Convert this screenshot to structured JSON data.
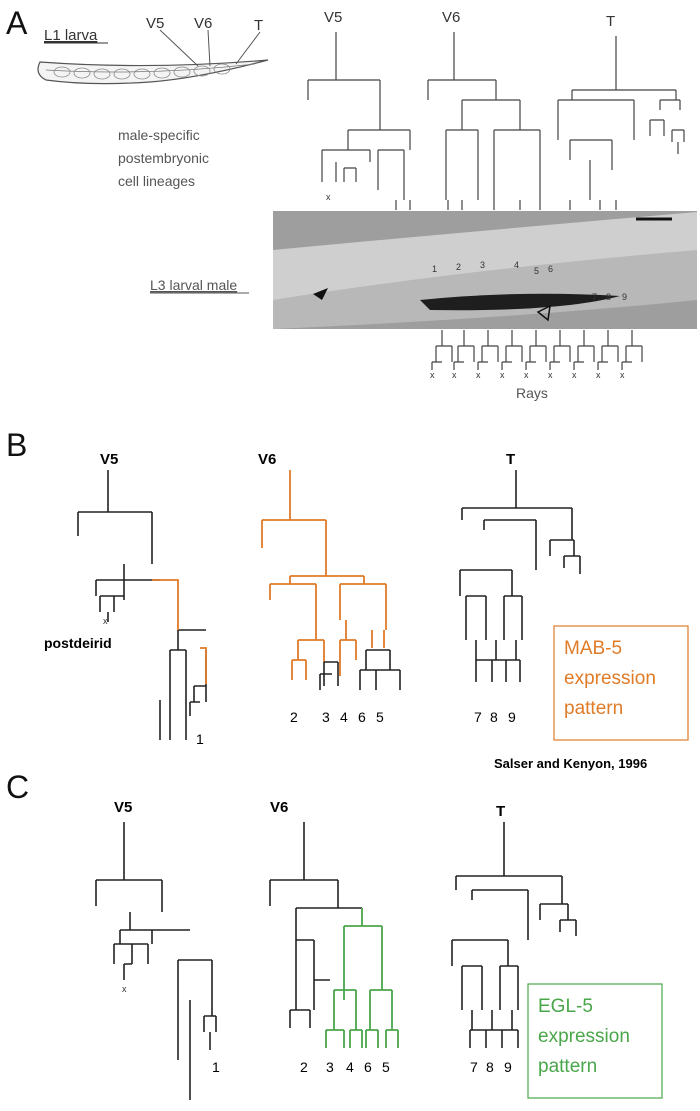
{
  "panels": {
    "a": {
      "letter": "A",
      "larva_label": "L1 larva",
      "larva_cells": [
        "V5",
        "V6",
        "T"
      ],
      "lineage_heads": [
        "V5",
        "V6",
        "T"
      ],
      "lineage_caption": [
        "male-specific",
        "postembryonic",
        "cell lineages"
      ],
      "micrograph_label": "L3 larval male",
      "micrograph_numbers": [
        "1",
        "2",
        "3",
        "4",
        "5",
        "6",
        "7",
        "8",
        "9"
      ],
      "rays_label": "Rays",
      "death_mark": "x"
    },
    "b": {
      "letter": "B",
      "lineage_heads": [
        "V5",
        "V6",
        "T"
      ],
      "postdeirid_label": "postdeirid",
      "v5_rays": "1",
      "v6_rays": [
        "2",
        "3",
        "4",
        "6",
        "5"
      ],
      "t_rays": [
        "7",
        "8",
        "9"
      ],
      "legend_lines": [
        "MAB-5",
        "expression",
        "pattern"
      ],
      "legend_color": "#e07b28",
      "citation": "Salser and Kenyon, 1996"
    },
    "c": {
      "letter": "C",
      "lineage_heads": [
        "V5",
        "V6",
        "T"
      ],
      "v5_rays": "1",
      "v6_rays": [
        "2",
        "3",
        "4",
        "6",
        "5"
      ],
      "t_rays": [
        "7",
        "8",
        "9"
      ],
      "legend_lines": [
        "EGL-5",
        "expression",
        "pattern"
      ],
      "legend_color": "#4aa64a"
    }
  }
}
